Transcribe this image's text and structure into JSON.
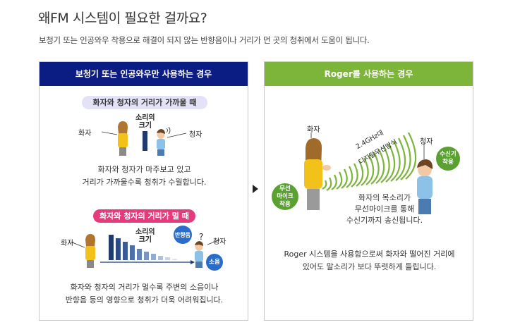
{
  "header": {
    "title": "왜FM 시스템이 필요한 걸까요?",
    "subtitle": "보청기 또는 인공와우 착용으로 해결이 되지 않는 반향음이나 거리가 먼 곳의 청취에서 도움이 됩니다."
  },
  "left_panel": {
    "title": "보청기 또는 인공와우만 사용하는 경우",
    "near": {
      "pill": "화자와 청자의 거리가 가까울 때",
      "speaker": "화자",
      "listener": "청자",
      "volume_label": "소리의\n크기",
      "desc_line1": "화자와 청자가 마주보고 있고",
      "desc_line2": "거리가 가까울수록 청취가 수월합니다."
    },
    "far": {
      "pill": "화자와 청자의 거리가 멀 때",
      "speaker": "화자",
      "listener": "청자",
      "volume_label": "소리의\n크기",
      "reverb_badge": "반향음",
      "noise_badge": "소음",
      "question": "?",
      "desc_line1": "화자와 청자의 거리가 멀수록  주변의 소음이나",
      "desc_line2": "반향음 등의 영향으로 청취가 더욱 어려워집니다."
    }
  },
  "right_panel": {
    "title": "Roger를 사용하는 경우",
    "speaker": "화자",
    "listener": "청자",
    "mic_badge": "무선\n마이크\n착용",
    "receiver_badge": "수신기\n착용",
    "signal_label_1": "2.4GHz대",
    "signal_label_2": "디지털무선방식",
    "mid_line1": "화자의 목소리가",
    "mid_line2": "무선마이크를 통해",
    "mid_line3": "수신기까지 송신됩니다.",
    "desc_line1": "Roger 시스템을 사용함으로써 화자와 떨어진 거리에",
    "desc_line2": "있어도 말소리가 보다 뚜렷하게 들립니다."
  },
  "colors": {
    "left_header": "#0b1d82",
    "right_header": "#7db53b",
    "pill_near": "#e3e2f6",
    "pill_far": "#e53a7c",
    "volume_bar": "#1f3a6e",
    "wave": "#7db53b",
    "badge_blue": "#2a6cc9",
    "badge_green": "#5aa132"
  }
}
